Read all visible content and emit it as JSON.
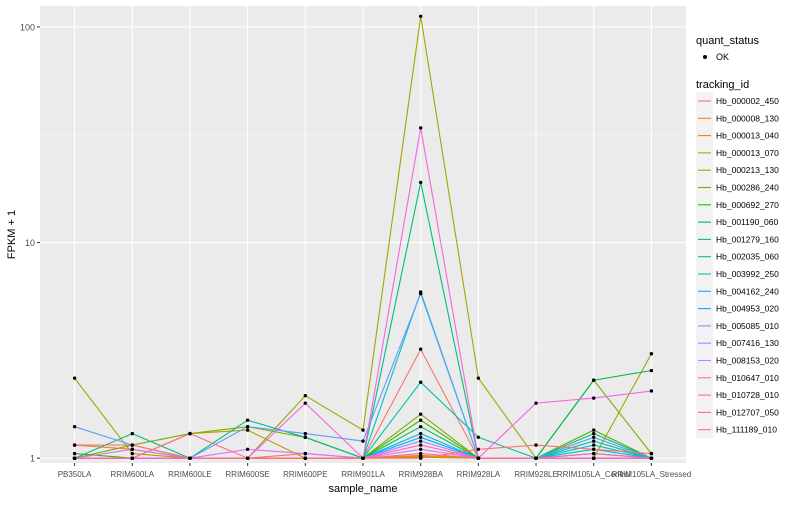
{
  "chart_data": {
    "type": "line",
    "title": "",
    "xlabel": "sample_name",
    "ylabel": "FPKM + 1",
    "y_scale": "log10",
    "ylim": [
      0.95,
      125
    ],
    "y_ticks": [
      1,
      10,
      100
    ],
    "y_tick_labels": [
      "1",
      "10",
      "100"
    ],
    "categories": [
      "PB350LA",
      "RRIM600LA",
      "RRIM600LE",
      "RRIM600SE",
      "RRIM600PE",
      "RRIM901LA",
      "RRIM928BA",
      "RRIM928LA",
      "RRIM928LE",
      "RRIM105LA_Control",
      "RRIM105LA_Stressed"
    ],
    "tick_labels": [
      "PB350LA",
      "RRIM600LA",
      "RRIM600LE",
      "RRIM600SE",
      "RRIM600PE",
      "RRIM901LA",
      "RRIM928BA",
      "RRIM928LA",
      "RRIM928LE",
      "RRIM105LA_Control",
      "RRIM105LA_Stressed"
    ],
    "grid": true,
    "background": "#ebebeb",
    "legend": {
      "position": "right",
      "shape_title": "quant_status",
      "shape_entries": [
        "OK"
      ],
      "color_title": "tracking_id"
    },
    "series": [
      {
        "name": "Hb_000002_450",
        "color": "#F8766D",
        "values": [
          1.0,
          1.0,
          1.0,
          1.0,
          1.05,
          1.0,
          3.2,
          1.0,
          1.0,
          1.0,
          1.0
        ]
      },
      {
        "name": "Hb_000008_130",
        "color": "#EA8331",
        "values": [
          1.15,
          1.1,
          1.0,
          1.0,
          1.0,
          1.0,
          1.03,
          1.0,
          1.0,
          1.0,
          1.0
        ]
      },
      {
        "name": "Hb_000013_040",
        "color": "#D89000",
        "values": [
          1.0,
          1.0,
          1.0,
          1.0,
          1.0,
          1.0,
          1.02,
          1.0,
          1.0,
          1.0,
          1.0
        ]
      },
      {
        "name": "Hb_000013_070",
        "color": "#C09B00",
        "values": [
          1.0,
          1.0,
          1.3,
          1.35,
          1.0,
          1.0,
          1.01,
          1.0,
          1.0,
          1.0,
          1.0
        ]
      },
      {
        "name": "Hb_000213_130",
        "color": "#A3A500",
        "values": [
          2.35,
          1.05,
          1.0,
          1.0,
          1.95,
          1.35,
          112.0,
          2.35,
          1.0,
          1.0,
          3.05
        ]
      },
      {
        "name": "Hb_000286_240",
        "color": "#7CAE00",
        "values": [
          1.0,
          1.15,
          1.3,
          1.4,
          1.25,
          1.0,
          1.6,
          1.0,
          1.0,
          2.3,
          1.05
        ]
      },
      {
        "name": "Hb_000692_270",
        "color": "#39B600",
        "values": [
          1.05,
          1.0,
          1.0,
          1.0,
          1.0,
          1.0,
          1.5,
          1.0,
          1.0,
          1.35,
          1.0
        ]
      },
      {
        "name": "Hb_001190_060",
        "color": "#00BB4E",
        "values": [
          1.0,
          1.0,
          1.0,
          1.0,
          1.0,
          1.0,
          1.4,
          1.0,
          1.0,
          2.3,
          2.55
        ]
      },
      {
        "name": "Hb_001279_160",
        "color": "#00BF7D",
        "values": [
          1.0,
          1.3,
          1.0,
          1.5,
          1.25,
          1.0,
          19.0,
          1.0,
          1.0,
          1.3,
          1.0
        ]
      },
      {
        "name": "Hb_002035_060",
        "color": "#00C1A3",
        "values": [
          1.0,
          1.0,
          1.0,
          1.0,
          1.0,
          1.0,
          2.25,
          1.25,
          1.0,
          1.2,
          1.0
        ]
      },
      {
        "name": "Hb_003992_250",
        "color": "#00BFC4",
        "values": [
          1.0,
          1.0,
          1.0,
          1.0,
          1.0,
          1.0,
          5.9,
          1.0,
          1.0,
          1.15,
          1.0
        ]
      },
      {
        "name": "Hb_004162_240",
        "color": "#00B8E5",
        "values": [
          1.0,
          1.0,
          1.0,
          1.0,
          1.0,
          1.0,
          1.3,
          1.0,
          1.0,
          1.1,
          1.0
        ]
      },
      {
        "name": "Hb_004953_020",
        "color": "#00ABFD",
        "values": [
          1.0,
          1.0,
          1.0,
          1.0,
          1.0,
          1.0,
          1.25,
          1.0,
          1.0,
          1.05,
          1.0
        ]
      },
      {
        "name": "Hb_005085_010",
        "color": "#619CFF",
        "values": [
          1.4,
          1.15,
          1.0,
          1.4,
          1.3,
          1.2,
          5.8,
          1.0,
          1.0,
          1.25,
          1.0
        ]
      },
      {
        "name": "Hb_007416_130",
        "color": "#A58AFF",
        "values": [
          1.0,
          1.0,
          1.0,
          1.0,
          1.0,
          1.0,
          1.2,
          1.0,
          1.0,
          1.0,
          1.0
        ]
      },
      {
        "name": "Hb_008153_020",
        "color": "#DB72FB",
        "values": [
          1.0,
          1.1,
          1.0,
          1.1,
          1.05,
          1.0,
          1.1,
          1.0,
          1.0,
          1.0,
          1.0
        ]
      },
      {
        "name": "Hb_010647_010",
        "color": "#F564E3",
        "values": [
          1.0,
          1.0,
          1.0,
          1.0,
          1.8,
          1.0,
          34.0,
          1.0,
          1.8,
          1.9,
          2.05
        ]
      },
      {
        "name": "Hb_010728_010",
        "color": "#FF61C3",
        "values": [
          1.0,
          1.0,
          1.0,
          1.0,
          1.0,
          1.0,
          1.15,
          1.0,
          1.0,
          1.0,
          1.0
        ]
      },
      {
        "name": "Hb_012707_050",
        "color": "#FF6C91",
        "values": [
          1.0,
          1.0,
          1.3,
          1.0,
          1.0,
          1.0,
          1.05,
          1.0,
          1.0,
          1.05,
          1.0
        ]
      },
      {
        "name": "Hb_111189_010",
        "color": "#F8766D",
        "values": [
          1.15,
          1.15,
          1.0,
          1.0,
          1.0,
          1.0,
          1.0,
          1.1,
          1.15,
          1.1,
          1.05
        ]
      }
    ]
  }
}
